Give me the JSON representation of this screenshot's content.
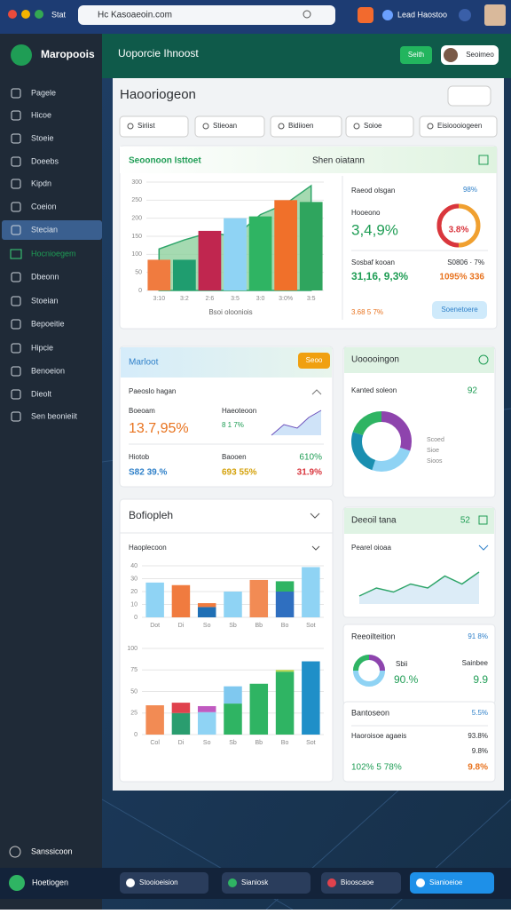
{
  "browser": {
    "tab": "Stat",
    "url": "Hc Kasoaeoin.com",
    "user": "Lead Haostoo"
  },
  "sidebar": {
    "brand": "Maropoois",
    "items": [
      "Pagele",
      "Hicoe",
      "Stoeie",
      "Doeebs",
      "Kipdn",
      "Coeion",
      "Stecian",
      "Hocnioegem",
      "Dbeonn",
      "Stoeian",
      "Bepoeitie",
      "Hipcie",
      "Benoeion",
      "Dieolt",
      "Sen beonieiit"
    ],
    "footer": "Sanssicoon"
  },
  "header": {
    "title": "Uoporcie Ihnoost",
    "button": "Seith",
    "profile": "Seoimeo"
  },
  "page": {
    "title": "Haooriogeon",
    "filters": [
      "Siriist",
      "Stieoan",
      "Bidiioen",
      "Soioe",
      "Eisioooiogeen"
    ]
  },
  "main_card": {
    "title": "Seoonoon Isttoet",
    "side_title": "Shen oiatann",
    "x_label": "Bsoi olooniois",
    "stat1_label": "Raeod olsgan",
    "stat1_value": "98%",
    "stat2_label": "Hooeono",
    "stat2_value": "3,4,9%",
    "ring_value": "3.8%",
    "stat3_label": "Sosbaf kooan",
    "stat3_aside": "S0806 · 7%",
    "stat3_value": "31,16, 9,3%",
    "stat3_value2": "1095% 336",
    "stat4_value": "3.68 5 7%",
    "button": "Soenetoere"
  },
  "market_card": {
    "title": "Marloot",
    "button": "Seoo",
    "subtitle": "Paeoslo hagan",
    "a_label": "Boeoam",
    "a_value": "13.7,95%",
    "b_label": "Haeoteoon",
    "b_value": "8 1 7%",
    "c_label": "Hiotob",
    "c_value": "S82 39.%",
    "d_label": "Baooen",
    "d_value": "693 55%",
    "e_value": "610%",
    "f_value": "31.9%"
  },
  "ring_card": {
    "title": "Uooooingon",
    "subtitle": "Kanted soleon",
    "value": "92",
    "legend": [
      "Scoed",
      "Sioe",
      "Sioos"
    ]
  },
  "bars_card": {
    "title": "Bofiopleh",
    "subtitle": "Haoplecoon"
  },
  "trend_card": {
    "title": "Deeoil tana",
    "value": "52",
    "subtitle": "Pearel oioaa"
  },
  "retention_card": {
    "title": "Reeoilteition",
    "value": "91 8%",
    "a_label": "Sbii",
    "a_value": "90.%",
    "b_label": "Sainbee",
    "b_value": "9.9"
  },
  "balance_card": {
    "title": "Bantoseon",
    "value": "5.5%",
    "row_label": "Haoroisoe agaeis",
    "row_value": "93.8%",
    "sub_value": "9.8%",
    "total": "102% 5 78%",
    "total_value": "9.8%"
  },
  "bottom_bar": {
    "user": "Hoetiogen",
    "items": [
      "Stooioeision",
      "Sianiosk",
      "Biooscaoe",
      "Sianioeioe"
    ]
  },
  "chart_data": [
    {
      "type": "bar",
      "categories": [
        "3:10",
        "3:2",
        "2:6",
        "3:5",
        "3:0",
        "3:0%",
        "3:5"
      ],
      "values": [
        85,
        85,
        165,
        200,
        205,
        250,
        245
      ],
      "colors": [
        "#f07b3f",
        "#1f9d6f",
        "#c0264f",
        "#8fd3f4",
        "#2fb463",
        "#f0702a",
        "#2fa55e"
      ],
      "area": {
        "values": [
          115,
          140,
          160,
          150,
          210,
          240,
          290
        ],
        "color": "#8fd19e"
      },
      "ylim": [
        0,
        300
      ],
      "yticks": [
        0,
        50,
        100,
        150,
        200,
        250,
        300
      ]
    },
    {
      "type": "bar",
      "categories": [
        "Dot",
        "Di",
        "So",
        "Sb",
        "Bb",
        "Bo",
        "Sot"
      ],
      "series": [
        {
          "values": [
            27,
            25,
            8,
            20,
            29,
            20,
            39
          ],
          "colors": [
            "#8fd3f4",
            "#f07b3f",
            "#1f6fb5",
            "#8fd3f4",
            "#f28b54",
            "#2f6fc0",
            "#8fd3f4"
          ]
        },
        {
          "values": [
            null,
            null,
            3,
            null,
            null,
            8,
            null
          ],
          "colors": [
            null,
            null,
            "#f07b3f",
            null,
            null,
            "#2fb463",
            null
          ]
        }
      ],
      "ylim": [
        0,
        40
      ],
      "yticks": [
        0,
        10,
        20,
        30,
        40
      ]
    },
    {
      "type": "bar",
      "categories": [
        "Col",
        "Di",
        "So",
        "Sb",
        "Bb",
        "Bo",
        "Sot"
      ],
      "series": [
        {
          "values": [
            34,
            25,
            26,
            36,
            59,
            73,
            85
          ],
          "colors": [
            "#f28b54",
            "#2a9d6f",
            "#8fd3f4",
            "#2fb463",
            "#2fb463",
            "#2fb463",
            "#1f8fc8"
          ]
        },
        {
          "values": [
            null,
            12,
            7,
            20,
            null,
            2,
            null
          ],
          "colors": [
            null,
            "#e0424d",
            "#c05ac0",
            "#7fc8ef",
            null,
            "#b6d64a",
            null
          ]
        }
      ],
      "ylim": [
        0,
        100
      ],
      "yticks": [
        0,
        25,
        50,
        75,
        100
      ]
    },
    {
      "type": "pie",
      "values": [
        30,
        25,
        25,
        20
      ],
      "colors": [
        "#8e44ad",
        "#8fd3f4",
        "#1a8fb0",
        "#2fb463"
      ]
    },
    {
      "type": "line",
      "values": [
        2,
        4,
        3,
        5,
        4,
        7,
        5,
        8
      ],
      "ylim": [
        0,
        10
      ],
      "color": "#2fa56a"
    }
  ]
}
